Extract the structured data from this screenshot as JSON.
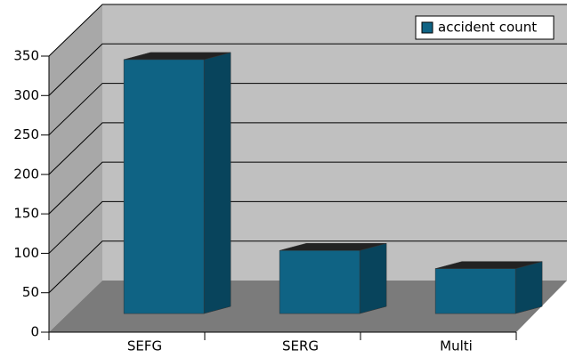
{
  "chart_data": {
    "type": "bar3d",
    "categories": [
      "SEFG",
      "SERG",
      "Multi"
    ],
    "series": [
      {
        "name": "accident count",
        "color": "#0f6384",
        "values": [
          322,
          80,
          57
        ]
      }
    ],
    "ylim": [
      0,
      350
    ],
    "yticks": [
      0,
      50,
      100,
      150,
      200,
      250,
      300,
      350
    ],
    "grid": true,
    "legend": "top-right"
  }
}
